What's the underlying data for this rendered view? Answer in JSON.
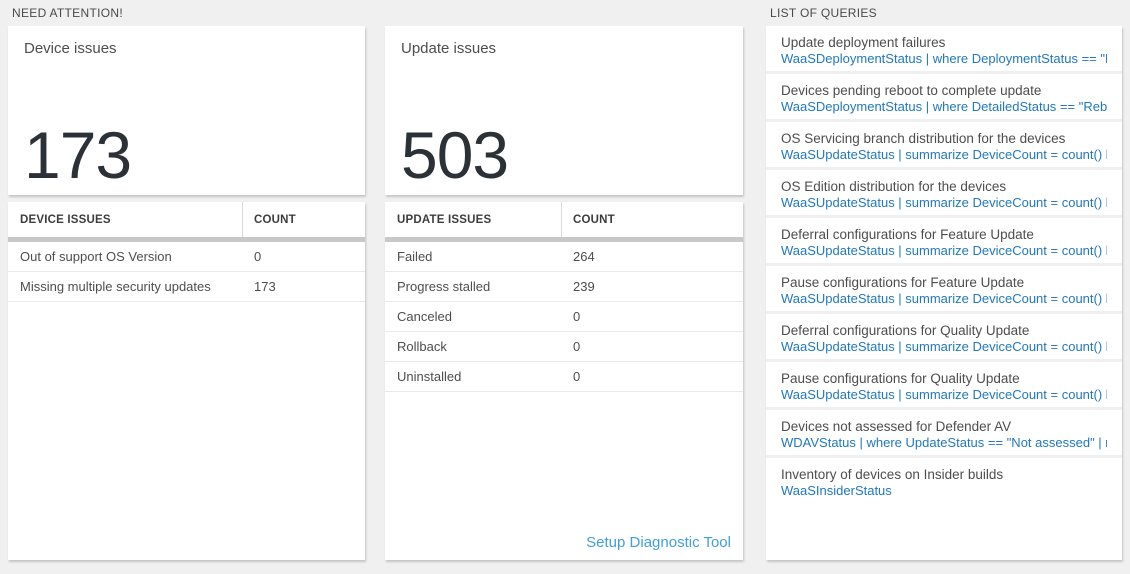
{
  "colors": {
    "page_background": "#f0f0f0",
    "tile_background": "#ffffff",
    "big_number_text": "#2b3137",
    "query_code_blue": "#2178bf",
    "footer_link_blue": "#3f9fdc",
    "grid_bar_gray": "#c8c8c8"
  },
  "need_attention": {
    "header": "NEED ATTENTION!",
    "device_card": {
      "title": "Device issues",
      "total": "173",
      "table": {
        "columns": {
          "name": "DEVICE ISSUES",
          "count": "COUNT"
        },
        "rows": [
          {
            "issue": "Out of support OS Version",
            "count": "0"
          },
          {
            "issue": "Missing multiple security updates",
            "count": "173"
          }
        ]
      }
    },
    "update_card": {
      "title": "Update issues",
      "total": "503",
      "table": {
        "columns": {
          "name": "UPDATE ISSUES",
          "count": "COUNT"
        },
        "rows": [
          {
            "issue": "Failed",
            "count": "264"
          },
          {
            "issue": "Progress stalled",
            "count": "239"
          },
          {
            "issue": "Canceled",
            "count": "0"
          },
          {
            "issue": "Rollback",
            "count": "0"
          },
          {
            "issue": "Uninstalled",
            "count": "0"
          }
        ]
      },
      "footer_link": "Setup Diagnostic Tool"
    }
  },
  "queries": {
    "header": "LIST OF QUERIES",
    "items": [
      {
        "title": "Update deployment failures",
        "query": "WaaSDeploymentStatus | where DeploymentStatus == \"Failed\" |..."
      },
      {
        "title": "Devices pending reboot to complete update",
        "query": "WaaSDeploymentStatus | where DetailedStatus == \"Reboot pend..."
      },
      {
        "title": "OS Servicing branch distribution for the devices",
        "query": "WaaSUpdateStatus | summarize DeviceCount = count() by OSSer..."
      },
      {
        "title": "OS Edition distribution for the devices",
        "query": "WaaSUpdateStatus | summarize DeviceCount = count() by OSEdit..."
      },
      {
        "title": "Deferral configurations for Feature Update",
        "query": "WaaSUpdateStatus | summarize DeviceCount = count() by Featur..."
      },
      {
        "title": "Pause configurations for Feature Update",
        "query": "WaaSUpdateStatus | summarize DeviceCount = count() by Featur..."
      },
      {
        "title": "Deferral configurations for Quality Update",
        "query": "WaaSUpdateStatus | summarize DeviceCount = count() by Qualit..."
      },
      {
        "title": "Pause configurations for Quality Update",
        "query": "WaaSUpdateStatus | summarize DeviceCount = count() by Qualit..."
      },
      {
        "title": "Devices not assessed for Defender AV",
        "query": "WDAVStatus | where UpdateStatus == \"Not assessed\" | render ta..."
      },
      {
        "title": "Inventory of devices on Insider builds",
        "query": "WaaSInsiderStatus"
      }
    ]
  }
}
